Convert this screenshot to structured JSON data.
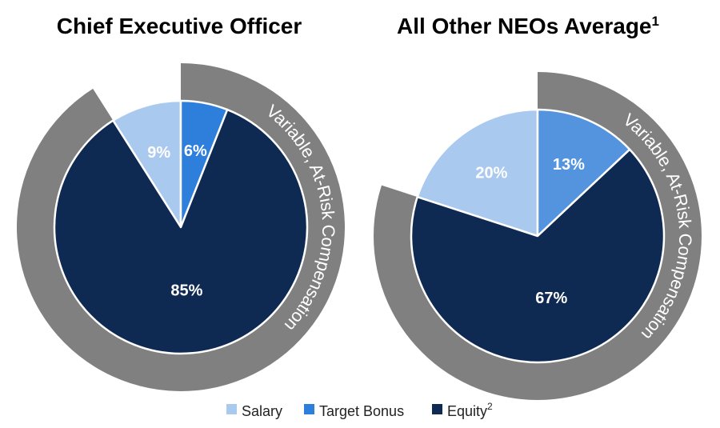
{
  "chart_data": [
    {
      "type": "pie",
      "title": "Chief Executive Officer",
      "title_sup": "",
      "ring_label": "Variable, At-Risk Compensation",
      "slices": [
        {
          "name": "Salary",
          "value": 9,
          "label": "9%",
          "color": "#a9c9ef"
        },
        {
          "name": "Target Bonus",
          "value": 6,
          "label": "6%",
          "color": "#2e7fdb"
        },
        {
          "name": "Equity",
          "value": 85,
          "label": "85%",
          "color": "#0f2a52"
        }
      ]
    },
    {
      "type": "pie",
      "title": "All Other NEOs Average",
      "title_sup": "1",
      "ring_label": "Variable, At-Risk Compensation",
      "slices": [
        {
          "name": "Salary",
          "value": 20,
          "label": "20%",
          "color": "#a9c9ef"
        },
        {
          "name": "Target Bonus",
          "value": 13,
          "label": "13%",
          "color": "#5494df"
        },
        {
          "name": "Equity",
          "value": 67,
          "label": "67%",
          "color": "#0f2a52"
        }
      ]
    }
  ],
  "legend": [
    {
      "label": "Salary",
      "sup": "",
      "color": "#a9c9ef"
    },
    {
      "label": "Target Bonus",
      "sup": "",
      "color": "#2e7fdb"
    },
    {
      "label": "Equity",
      "sup": "2",
      "color": "#0f2a52"
    }
  ],
  "colors": {
    "ring": "#808080",
    "background": "#ffffff"
  }
}
